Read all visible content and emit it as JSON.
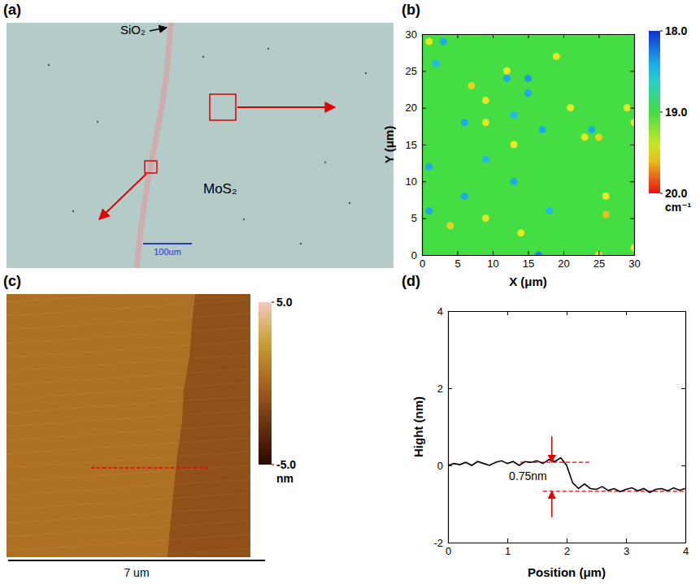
{
  "chart_data": [
    {
      "type": "image",
      "panel": "(a)",
      "labels": [
        "SiO₂",
        "MoS₂"
      ],
      "scale_bar": "100um"
    },
    {
      "type": "heatmap",
      "panel": "(b)",
      "x_label": "X (μm)",
      "y_label": "Y (μm)",
      "xlim": [
        0,
        30
      ],
      "ylim": [
        0,
        30
      ],
      "xticks": [
        0,
        5,
        10,
        15,
        20,
        25,
        30
      ],
      "yticks": [
        0,
        5,
        10,
        15,
        20,
        25,
        30
      ],
      "fill_value": 19.0,
      "x": [
        3,
        2,
        12,
        15,
        15,
        6,
        13,
        17,
        24,
        1,
        9,
        13,
        6,
        18,
        1,
        16.5,
        1,
        12,
        19,
        7,
        9,
        9,
        21,
        29,
        23,
        25,
        13,
        30,
        26,
        26,
        4,
        9,
        14,
        25,
        30
      ],
      "y": [
        29,
        26,
        24,
        24,
        22,
        18,
        19,
        17,
        17,
        12,
        13,
        10,
        8,
        6,
        6,
        0,
        29,
        25,
        27,
        23,
        21,
        18,
        20,
        20,
        16,
        16,
        15,
        18,
        8,
        5.5,
        4,
        5,
        3,
        0,
        1
      ],
      "values": [
        18.4,
        18.45,
        18.4,
        18.35,
        18.4,
        18.4,
        18.45,
        18.4,
        18.4,
        18.4,
        18.45,
        18.4,
        18.4,
        18.45,
        18.4,
        18.3,
        19.5,
        19.5,
        19.5,
        19.55,
        19.5,
        19.5,
        19.5,
        19.5,
        19.5,
        19.55,
        19.5,
        19.5,
        19.5,
        19.6,
        19.55,
        19.5,
        19.5,
        19.5,
        19.5
      ],
      "colorbar": {
        "range": [
          20,
          18
        ],
        "ticks": [
          {
            "value": 18,
            "label": "18.0"
          },
          {
            "value": 19,
            "label": "19.0"
          },
          {
            "value": 20,
            "label": "20.0"
          }
        ],
        "label": "cm⁻¹"
      }
    },
    {
      "type": "image",
      "panel": "(c)",
      "values": [
        0.5,
        -1.0
      ],
      "colorbar": {
        "range": [
          -5,
          5
        ],
        "ticks": [
          {
            "value": 5,
            "label": "5.0"
          },
          {
            "value": -5,
            "label": "-5.0"
          }
        ],
        "label": "nm"
      },
      "scale_bar": "7 um"
    },
    {
      "type": "line",
      "panel": "(d)",
      "x_label": "Position (μm)",
      "y_label": "Hight (nm)",
      "xlim": [
        0,
        4
      ],
      "ylim": [
        -2,
        4
      ],
      "xticks": [
        0,
        1,
        2,
        3,
        4
      ],
      "yticks": [
        -2,
        0,
        2,
        4
      ],
      "x": [
        0,
        0.1,
        0.2,
        0.3,
        0.4,
        0.5,
        0.6,
        0.7,
        0.8,
        0.9,
        1.0,
        1.1,
        1.2,
        1.3,
        1.4,
        1.5,
        1.6,
        1.7,
        1.8,
        1.9,
        2.0,
        2.1,
        2.2,
        2.3,
        2.4,
        2.5,
        2.6,
        2.7,
        2.8,
        2.9,
        3.0,
        3.1,
        3.2,
        3.3,
        3.4,
        3.5,
        3.6,
        3.7,
        3.8,
        3.9,
        4.0
      ],
      "series": [
        {
          "color": "#000000",
          "values": [
            0.0,
            0.05,
            0.02,
            0.08,
            0.0,
            0.1,
            0.05,
            0.0,
            0.08,
            0.12,
            0.05,
            0.1,
            0.0,
            0.1,
            0.08,
            0.12,
            0.05,
            0.15,
            0.1,
            0.2,
            0.0,
            -0.45,
            -0.6,
            -0.48,
            -0.6,
            -0.62,
            -0.55,
            -0.65,
            -0.6,
            -0.68,
            -0.62,
            -0.58,
            -0.66,
            -0.6,
            -0.7,
            -0.62,
            -0.6,
            -0.66,
            -0.58,
            -0.64,
            -0.6
          ]
        }
      ],
      "reference_lines": [
        {
          "y": 0.08,
          "x": [
            1.22,
            2.38
          ]
        },
        {
          "y": -0.67,
          "x": [
            1.6,
            4
          ]
        }
      ],
      "annotations": [
        {
          "text": "0.75nm",
          "x": 1.75,
          "y": -0.28
        }
      ]
    }
  ]
}
